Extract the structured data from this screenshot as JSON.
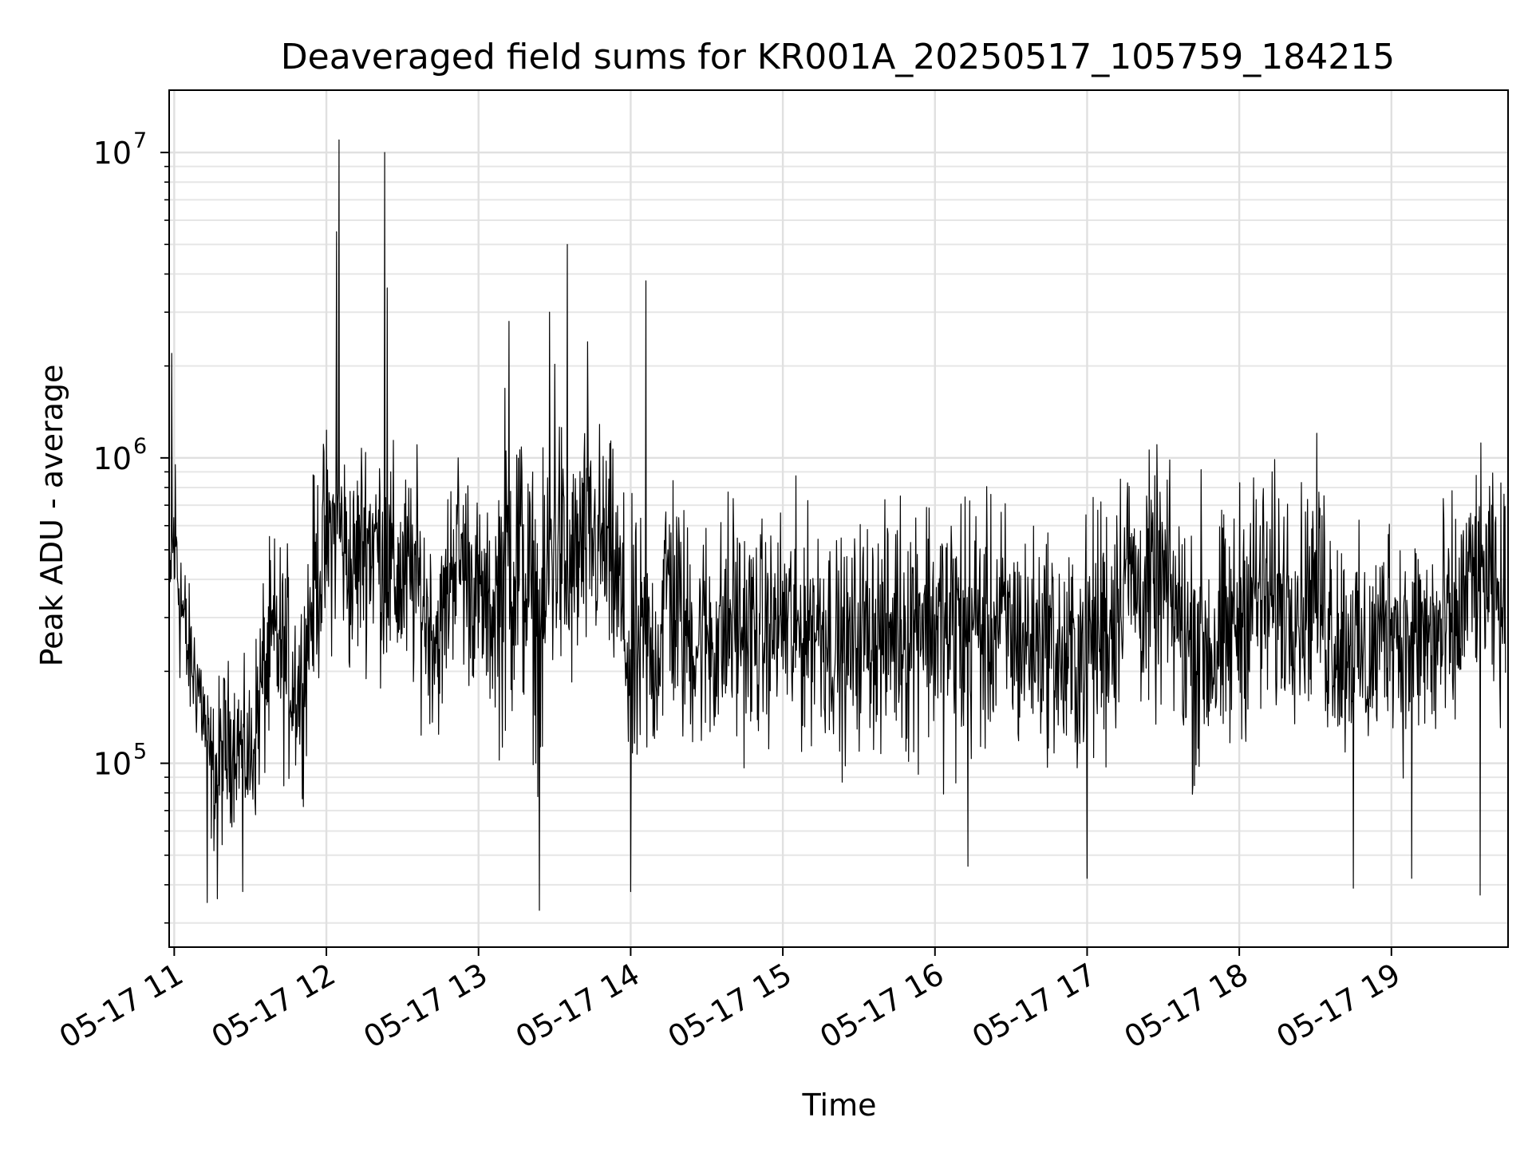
{
  "chart_data": {
    "type": "line",
    "title": "Deaveraged field sums for KR001A_20250517_105759_184215",
    "xlabel": "Time",
    "ylabel": "Peak ADU - average",
    "yscale": "log",
    "ylim": [
      25000,
      16000000
    ],
    "xlim": [
      "2025-05-17 10:58:00",
      "2025-05-17 19:46:00"
    ],
    "grid": true,
    "x_ticks": [
      {
        "value": "2025-05-17 11:00",
        "label": "05-17 11"
      },
      {
        "value": "2025-05-17 12:00",
        "label": "05-17 12"
      },
      {
        "value": "2025-05-17 13:00",
        "label": "05-17 13"
      },
      {
        "value": "2025-05-17 14:00",
        "label": "05-17 14"
      },
      {
        "value": "2025-05-17 15:00",
        "label": "05-17 15"
      },
      {
        "value": "2025-05-17 16:00",
        "label": "05-17 16"
      },
      {
        "value": "2025-05-17 17:00",
        "label": "05-17 17"
      },
      {
        "value": "2025-05-17 18:00",
        "label": "05-17 18"
      },
      {
        "value": "2025-05-17 19:00",
        "label": "05-17 19"
      }
    ],
    "y_ticks": [
      {
        "value": 100000,
        "base": "10",
        "exp": "5"
      },
      {
        "value": 1000000,
        "base": "10",
        "exp": "6"
      },
      {
        "value": 10000000,
        "base": "10",
        "exp": "7"
      }
    ],
    "line_color": "#000000",
    "series": [
      {
        "x": [
          "2025-05-17 10:58",
          "2025-05-17 11:00",
          "2025-05-17 11:05",
          "2025-05-17 11:10",
          "2025-05-17 11:15",
          "2025-05-17 11:20",
          "2025-05-17 11:25",
          "2025-05-17 11:30",
          "2025-05-17 11:35",
          "2025-05-17 11:40",
          "2025-05-17 11:45",
          "2025-05-17 11:50",
          "2025-05-17 11:55",
          "2025-05-17 12:00",
          "2025-05-17 12:05",
          "2025-05-17 12:10",
          "2025-05-17 12:15",
          "2025-05-17 12:20",
          "2025-05-17 12:25",
          "2025-05-17 12:30",
          "2025-05-17 12:35",
          "2025-05-17 12:40",
          "2025-05-17 12:45",
          "2025-05-17 12:50",
          "2025-05-17 12:55",
          "2025-05-17 13:00",
          "2025-05-17 13:05",
          "2025-05-17 13:10",
          "2025-05-17 13:15",
          "2025-05-17 13:20",
          "2025-05-17 13:25",
          "2025-05-17 13:30",
          "2025-05-17 13:35",
          "2025-05-17 13:40",
          "2025-05-17 13:45",
          "2025-05-17 13:50",
          "2025-05-17 13:55",
          "2025-05-17 14:00",
          "2025-05-17 14:05",
          "2025-05-17 14:10",
          "2025-05-17 14:15",
          "2025-05-17 14:20",
          "2025-05-17 14:25",
          "2025-05-17 14:30",
          "2025-05-17 14:35",
          "2025-05-17 14:40",
          "2025-05-17 14:45",
          "2025-05-17 14:50",
          "2025-05-17 14:55",
          "2025-05-17 15:00",
          "2025-05-17 15:05",
          "2025-05-17 15:10",
          "2025-05-17 15:15",
          "2025-05-17 15:20",
          "2025-05-17 15:25",
          "2025-05-17 15:30",
          "2025-05-17 15:35",
          "2025-05-17 15:40",
          "2025-05-17 15:45",
          "2025-05-17 15:50",
          "2025-05-17 15:55",
          "2025-05-17 16:00",
          "2025-05-17 16:05",
          "2025-05-17 16:10",
          "2025-05-17 16:15",
          "2025-05-17 16:20",
          "2025-05-17 16:25",
          "2025-05-17 16:30",
          "2025-05-17 16:35",
          "2025-05-17 16:40",
          "2025-05-17 16:45",
          "2025-05-17 16:50",
          "2025-05-17 16:55",
          "2025-05-17 17:00",
          "2025-05-17 17:05",
          "2025-05-17 17:10",
          "2025-05-17 17:15",
          "2025-05-17 17:20",
          "2025-05-17 17:25",
          "2025-05-17 17:30",
          "2025-05-17 17:35",
          "2025-05-17 17:40",
          "2025-05-17 17:45",
          "2025-05-17 17:50",
          "2025-05-17 17:55",
          "2025-05-17 18:00",
          "2025-05-17 18:05",
          "2025-05-17 18:10",
          "2025-05-17 18:15",
          "2025-05-17 18:20",
          "2025-05-17 18:25",
          "2025-05-17 18:30",
          "2025-05-17 18:35",
          "2025-05-17 18:40",
          "2025-05-17 18:45",
          "2025-05-17 18:50",
          "2025-05-17 18:55",
          "2025-05-17 19:00",
          "2025-05-17 19:05",
          "2025-05-17 19:10",
          "2025-05-17 19:15",
          "2025-05-17 19:20",
          "2025-05-17 19:25",
          "2025-05-17 19:30",
          "2025-05-17 19:35",
          "2025-05-17 19:40",
          "2025-05-17 19:45"
        ],
        "low": [
          150000,
          140000,
          110000,
          90000,
          40000,
          40000,
          60000,
          40000,
          60000,
          80000,
          60000,
          60000,
          120000,
          150000,
          200000,
          120000,
          160000,
          150000,
          110000,
          120000,
          110000,
          100000,
          90000,
          150000,
          130000,
          120000,
          110000,
          60000,
          80000,
          90000,
          50000,
          90000,
          110000,
          120000,
          150000,
          140000,
          110000,
          40000,
          60000,
          70000,
          90000,
          70000,
          80000,
          70000,
          70000,
          70000,
          80000,
          80000,
          90000,
          90000,
          60000,
          90000,
          80000,
          80000,
          70000,
          80000,
          80000,
          70000,
          80000,
          60000,
          80000,
          70000,
          60000,
          50000,
          70000,
          70000,
          80000,
          70000,
          70000,
          80000,
          80000,
          60000,
          60000,
          70000,
          60000,
          60000,
          150000,
          110000,
          90000,
          100000,
          90000,
          60000,
          50000,
          60000,
          60000,
          80000,
          90000,
          80000,
          90000,
          110000,
          100000,
          110000,
          70000,
          70000,
          80000,
          60000,
          80000,
          100000,
          70000,
          80000,
          60000,
          60000,
          70000,
          120000,
          150000,
          100000,
          90000
        ],
        "high": [
          600000,
          2200000,
          500000,
          350000,
          200000,
          300000,
          250000,
          250000,
          600000,
          800000,
          700000,
          500000,
          1200000,
          1800000,
          1900000,
          1300000,
          2000000,
          1800000,
          1600000,
          1300000,
          1500000,
          900000,
          700000,
          1700000,
          1500000,
          1000000,
          800000,
          2900000,
          3000000,
          1500000,
          1200000,
          5000000,
          1200000,
          2000000,
          1900000,
          1800000,
          1300000,
          1000000,
          900000,
          700000,
          1900000,
          1100000,
          800000,
          1000000,
          900000,
          1300000,
          900000,
          900000,
          800000,
          1000000,
          1100000,
          900000,
          1100000,
          800000,
          700000,
          900000,
          1000000,
          900000,
          1100000,
          1300000,
          1400000,
          1100000,
          1200000,
          1500000,
          1300000,
          1000000,
          1100000,
          1000000,
          900000,
          800000,
          900000,
          700000,
          800000,
          900000,
          1300000,
          1500000,
          1500000,
          1200000,
          1400000,
          1500000,
          1100000,
          1000000,
          1300000,
          900000,
          1000000,
          1200000,
          1500000,
          1400000,
          1300000,
          1200000,
          1100000,
          1500000,
          1300000,
          900000,
          800000,
          700000,
          800000,
          1100000,
          800000,
          900000,
          1000000,
          1100000,
          1000000,
          1200000,
          1300000,
          1200000,
          1100000
        ],
        "peaks": [
          {
            "x": "2025-05-17 12:05",
            "y": 11000000
          },
          {
            "x": "2025-05-17 12:04",
            "y": 5500000
          },
          {
            "x": "2025-05-17 12:23",
            "y": 10000000
          },
          {
            "x": "2025-05-17 12:24",
            "y": 3600000
          },
          {
            "x": "2025-05-17 13:35",
            "y": 5000000
          },
          {
            "x": "2025-05-17 14:06",
            "y": 3800000
          },
          {
            "x": "2025-05-17 13:12",
            "y": 2800000
          },
          {
            "x": "2025-05-17 13:28",
            "y": 3000000
          },
          {
            "x": "2025-05-17 13:43",
            "y": 2400000
          },
          {
            "x": "2025-05-17 10:59",
            "y": 2200000
          }
        ],
        "dips": [
          {
            "x": "2025-05-17 13:24",
            "y": 33000
          },
          {
            "x": "2025-05-17 14:00",
            "y": 38000
          },
          {
            "x": "2025-05-17 11:13",
            "y": 35000
          },
          {
            "x": "2025-05-17 11:17",
            "y": 36000
          },
          {
            "x": "2025-05-17 11:27",
            "y": 38000
          },
          {
            "x": "2025-05-17 19:35",
            "y": 37000
          },
          {
            "x": "2025-05-17 18:45",
            "y": 39000
          },
          {
            "x": "2025-05-17 19:08",
            "y": 42000
          },
          {
            "x": "2025-05-17 17:00",
            "y": 42000
          },
          {
            "x": "2025-05-17 16:13",
            "y": 46000
          }
        ]
      }
    ]
  }
}
